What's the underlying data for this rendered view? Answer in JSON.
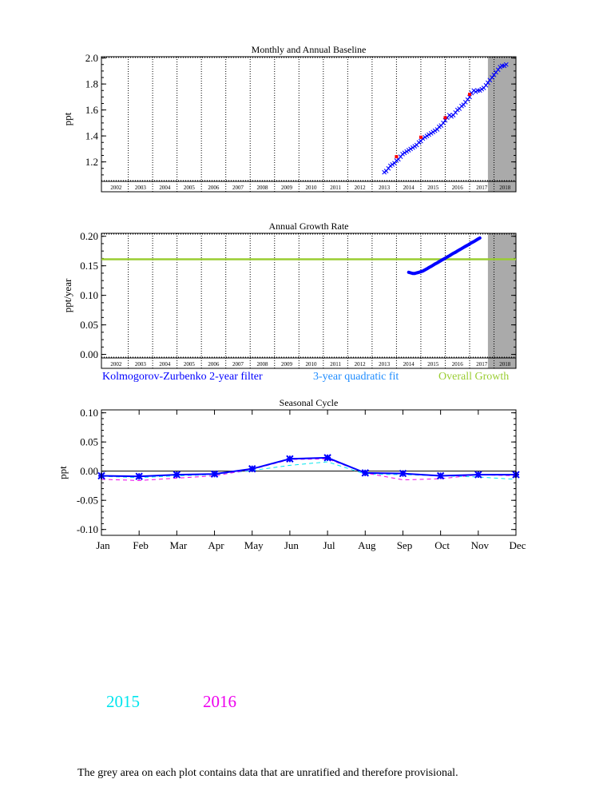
{
  "colors": {
    "filter": "#0000ff",
    "quadratic": "#1e8cff",
    "overall": "#9acd32",
    "provisional": "#aaaaaa",
    "red_marker": "#ff0000",
    "y2015": "#00e5ee",
    "y2016": "#ee00ee"
  },
  "chart_data": [
    {
      "type": "line",
      "title": "Monthly and Annual Baseline",
      "ylabel": "ppt",
      "xlim": [
        2001.9,
        2018.9
      ],
      "ylim": [
        1.05,
        2.01
      ],
      "yticks": [
        1.2,
        1.4,
        1.6,
        1.8,
        2.0
      ],
      "ytick_labels": [
        "1.2",
        "1.4",
        "1.6",
        "1.8",
        "2.0"
      ],
      "year_labels": [
        "2002",
        "2003",
        "2004",
        "2005",
        "2006",
        "2007",
        "2008",
        "2009",
        "2010",
        "2011",
        "2012",
        "2013",
        "2014",
        "2015",
        "2016",
        "2017",
        "2018"
      ],
      "provisional_from": 2017.75,
      "series": [
        {
          "type": "scatter",
          "x": [
            2013.5,
            2013.58,
            2013.67,
            2013.75,
            2013.83,
            2013.92,
            2014.0,
            2014.08,
            2014.17,
            2014.25,
            2014.33,
            2014.42,
            2014.5,
            2014.58,
            2014.67,
            2014.75,
            2014.83,
            2014.92,
            2015.0,
            2015.08,
            2015.17,
            2015.25,
            2015.33,
            2015.42,
            2015.5,
            2015.58,
            2015.67,
            2015.75,
            2015.83,
            2015.92,
            2016.0,
            2016.08,
            2016.17,
            2016.25,
            2016.33,
            2016.42,
            2016.5,
            2016.58,
            2016.67,
            2016.75,
            2016.83,
            2016.92,
            2017.0,
            2017.08,
            2017.17,
            2017.25,
            2017.33,
            2017.42,
            2017.5,
            2017.58,
            2017.67,
            2017.75,
            2017.83,
            2017.92,
            2018.0,
            2018.08,
            2018.17,
            2018.25,
            2018.33,
            2018.42,
            2018.5
          ],
          "y": [
            1.12,
            1.13,
            1.15,
            1.17,
            1.18,
            1.19,
            1.21,
            1.22,
            1.24,
            1.26,
            1.27,
            1.28,
            1.29,
            1.3,
            1.31,
            1.32,
            1.33,
            1.35,
            1.36,
            1.38,
            1.39,
            1.4,
            1.41,
            1.42,
            1.43,
            1.44,
            1.45,
            1.47,
            1.48,
            1.5,
            1.52,
            1.54,
            1.56,
            1.55,
            1.56,
            1.58,
            1.6,
            1.61,
            1.63,
            1.64,
            1.66,
            1.68,
            1.7,
            1.73,
            1.75,
            1.74,
            1.75,
            1.75,
            1.76,
            1.77,
            1.79,
            1.81,
            1.83,
            1.85,
            1.87,
            1.89,
            1.91,
            1.93,
            1.94,
            1.94,
            1.95
          ]
        },
        {
          "type": "scatter",
          "x": [
            2014.0,
            2015.0,
            2016.0,
            2017.0
          ],
          "y": [
            1.24,
            1.39,
            1.54,
            1.72
          ]
        }
      ]
    },
    {
      "type": "line",
      "title": "Annual Growth Rate",
      "ylabel": "ppt/year",
      "xlim": [
        2001.9,
        2018.9
      ],
      "ylim": [
        -0.006,
        0.205
      ],
      "yticks": [
        0.0,
        0.05,
        0.1,
        0.15,
        0.2
      ],
      "ytick_labels": [
        "0.00",
        "0.05",
        "0.10",
        "0.15",
        "0.20"
      ],
      "year_labels": [
        "2002",
        "2003",
        "2004",
        "2005",
        "2006",
        "2007",
        "2008",
        "2009",
        "2010",
        "2011",
        "2012",
        "2013",
        "2014",
        "2015",
        "2016",
        "2017",
        "2018"
      ],
      "provisional_from": 2017.75,
      "series": [
        {
          "name": "Kolmogorov-Zurbenko 2-year filter",
          "x": [
            2014.5,
            2014.58,
            2014.67,
            2014.75,
            2014.83,
            2014.92,
            2015.0,
            2015.08,
            2015.17,
            2015.25,
            2015.33,
            2015.42,
            2015.5,
            2015.58,
            2015.67,
            2015.75,
            2015.83,
            2015.92,
            2016.0,
            2016.08,
            2016.17,
            2016.25,
            2016.33,
            2016.42,
            2016.5,
            2016.58,
            2016.67,
            2016.75,
            2016.83,
            2016.92,
            2017.0,
            2017.08,
            2017.17,
            2017.25,
            2017.33,
            2017.42
          ],
          "y": [
            0.139,
            0.138,
            0.137,
            0.137,
            0.138,
            0.139,
            0.14,
            0.141,
            0.143,
            0.145,
            0.147,
            0.149,
            0.151,
            0.153,
            0.155,
            0.157,
            0.159,
            0.161,
            0.163,
            0.165,
            0.167,
            0.169,
            0.171,
            0.173,
            0.175,
            0.177,
            0.179,
            0.181,
            0.183,
            0.185,
            0.187,
            0.189,
            0.191,
            0.193,
            0.195,
            0.197
          ]
        },
        {
          "name": "3-year quadratic fit",
          "x": [],
          "y": []
        },
        {
          "name": "Overall Growth",
          "x": [
            2001.9,
            2018.9
          ],
          "y": [
            0.161,
            0.161
          ]
        }
      ]
    },
    {
      "type": "line",
      "title": "Seasonal Cycle",
      "ylabel": "ppt",
      "categories": [
        "Jan",
        "Feb",
        "Mar",
        "Apr",
        "May",
        "Jun",
        "Jul",
        "Aug",
        "Sep",
        "Oct",
        "Nov",
        "Dec"
      ],
      "ylim": [
        -0.11,
        0.105
      ],
      "yticks": [
        -0.1,
        -0.05,
        0.0,
        0.05,
        0.1
      ],
      "ytick_labels": [
        "-0.10",
        "-0.05",
        "0.00",
        "0.05",
        "0.10"
      ],
      "series": [
        {
          "values": [
            -0.008,
            -0.009,
            -0.006,
            -0.005,
            0.004,
            0.021,
            0.023,
            -0.003,
            -0.004,
            -0.008,
            -0.006,
            -0.006
          ]
        },
        {
          "name": "2015",
          "values": [
            -0.009,
            -0.011,
            -0.008,
            -0.006,
            0.001,
            0.01,
            0.016,
            -0.005,
            -0.006,
            -0.008,
            -0.01,
            -0.014
          ]
        },
        {
          "name": "2016",
          "values": [
            -0.014,
            -0.016,
            -0.012,
            -0.008,
            0.003,
            0.02,
            0.021,
            -0.003,
            -0.015,
            -0.013,
            -0.006,
            -0.008
          ]
        }
      ]
    }
  ],
  "legend": {
    "filter_label": "Kolmogorov-Zurbenko 2-year filter",
    "quadratic_label": "3-year quadratic fit",
    "overall_label": "Overall Growth"
  },
  "year_key": {
    "y2015": "2015",
    "y2016": "2016"
  },
  "footnote": "The grey area on each plot contains data that are unratified and therefore provisional."
}
